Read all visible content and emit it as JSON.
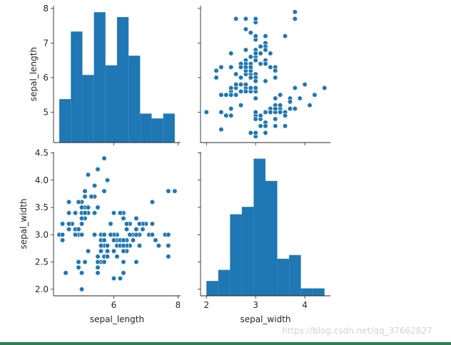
{
  "chart_data": {
    "type": "pairplot",
    "variables": [
      "sepal_length",
      "sepal_width"
    ],
    "grid": false,
    "color": "#1f77b4",
    "panels": [
      {
        "id": "hist_sepal_length",
        "row": 0,
        "col": 0,
        "type": "bar",
        "variable": "sepal_length",
        "bin_edges": [
          4.3,
          4.66,
          5.02,
          5.38,
          5.74,
          6.1,
          6.46,
          6.82,
          7.18,
          7.54,
          7.9
        ],
        "counts": [
          9,
          23,
          14,
          27,
          16,
          26,
          18,
          6,
          5,
          6
        ]
      },
      {
        "id": "scatter_length_vs_width",
        "row": 0,
        "col": 1,
        "type": "scatter",
        "x_var": "sepal_width",
        "y_var": "sepal_length"
      },
      {
        "id": "scatter_width_vs_length",
        "row": 1,
        "col": 0,
        "type": "scatter",
        "x_var": "sepal_length",
        "y_var": "sepal_width"
      },
      {
        "id": "hist_sepal_width",
        "row": 1,
        "col": 1,
        "type": "bar",
        "variable": "sepal_width",
        "bin_edges": [
          2.0,
          2.24,
          2.48,
          2.72,
          2.96,
          3.2,
          3.44,
          3.68,
          3.92,
          4.16,
          4.4
        ],
        "counts": [
          4,
          7,
          22,
          24,
          37,
          31,
          10,
          11,
          2,
          2
        ]
      }
    ],
    "points": [
      [
        5.1,
        3.5
      ],
      [
        4.9,
        3.0
      ],
      [
        4.7,
        3.2
      ],
      [
        4.6,
        3.1
      ],
      [
        5.0,
        3.6
      ],
      [
        5.4,
        3.9
      ],
      [
        4.6,
        3.4
      ],
      [
        5.0,
        3.4
      ],
      [
        4.4,
        2.9
      ],
      [
        4.9,
        3.1
      ],
      [
        5.4,
        3.7
      ],
      [
        4.8,
        3.4
      ],
      [
        4.8,
        3.0
      ],
      [
        4.3,
        3.0
      ],
      [
        5.8,
        4.0
      ],
      [
        5.7,
        4.4
      ],
      [
        5.4,
        3.9
      ],
      [
        5.1,
        3.5
      ],
      [
        5.7,
        3.8
      ],
      [
        5.1,
        3.8
      ],
      [
        5.4,
        3.4
      ],
      [
        5.1,
        3.7
      ],
      [
        4.6,
        3.6
      ],
      [
        5.1,
        3.3
      ],
      [
        4.8,
        3.4
      ],
      [
        5.0,
        3.0
      ],
      [
        5.0,
        3.4
      ],
      [
        5.2,
        3.5
      ],
      [
        5.2,
        3.4
      ],
      [
        4.7,
        3.2
      ],
      [
        4.8,
        3.1
      ],
      [
        5.4,
        3.4
      ],
      [
        5.2,
        4.1
      ],
      [
        5.5,
        4.2
      ],
      [
        4.9,
        3.1
      ],
      [
        5.0,
        3.2
      ],
      [
        5.5,
        3.5
      ],
      [
        4.9,
        3.6
      ],
      [
        4.4,
        3.0
      ],
      [
        5.1,
        3.4
      ],
      [
        5.0,
        3.5
      ],
      [
        4.5,
        2.3
      ],
      [
        4.4,
        3.2
      ],
      [
        5.0,
        3.5
      ],
      [
        5.1,
        3.8
      ],
      [
        4.8,
        3.0
      ],
      [
        5.1,
        3.8
      ],
      [
        4.6,
        3.2
      ],
      [
        5.3,
        3.7
      ],
      [
        5.0,
        3.3
      ],
      [
        7.0,
        3.2
      ],
      [
        6.4,
        3.2
      ],
      [
        6.9,
        3.1
      ],
      [
        5.5,
        2.3
      ],
      [
        6.5,
        2.8
      ],
      [
        5.7,
        2.8
      ],
      [
        6.3,
        3.3
      ],
      [
        4.9,
        2.4
      ],
      [
        6.6,
        2.9
      ],
      [
        5.2,
        2.7
      ],
      [
        5.0,
        2.0
      ],
      [
        5.9,
        3.0
      ],
      [
        6.0,
        2.2
      ],
      [
        6.1,
        2.9
      ],
      [
        5.6,
        2.9
      ],
      [
        6.7,
        3.1
      ],
      [
        5.6,
        3.0
      ],
      [
        5.8,
        2.7
      ],
      [
        6.2,
        2.2
      ],
      [
        5.6,
        2.5
      ],
      [
        5.9,
        3.2
      ],
      [
        6.1,
        2.8
      ],
      [
        6.3,
        2.5
      ],
      [
        6.1,
        2.8
      ],
      [
        6.4,
        2.9
      ],
      [
        6.6,
        3.0
      ],
      [
        6.8,
        2.8
      ],
      [
        6.7,
        3.0
      ],
      [
        6.0,
        2.9
      ],
      [
        5.7,
        2.6
      ],
      [
        5.5,
        2.4
      ],
      [
        5.5,
        2.4
      ],
      [
        5.8,
        2.7
      ],
      [
        6.0,
        2.7
      ],
      [
        5.4,
        3.0
      ],
      [
        6.0,
        3.4
      ],
      [
        6.7,
        3.1
      ],
      [
        6.3,
        2.3
      ],
      [
        5.6,
        3.0
      ],
      [
        5.5,
        2.5
      ],
      [
        5.5,
        2.6
      ],
      [
        6.1,
        3.0
      ],
      [
        5.8,
        2.6
      ],
      [
        5.0,
        2.3
      ],
      [
        5.6,
        2.7
      ],
      [
        5.7,
        3.0
      ],
      [
        5.7,
        2.9
      ],
      [
        6.2,
        2.9
      ],
      [
        5.1,
        2.5
      ],
      [
        5.7,
        2.8
      ],
      [
        6.3,
        3.3
      ],
      [
        5.8,
        2.7
      ],
      [
        7.1,
        3.0
      ],
      [
        6.3,
        2.9
      ],
      [
        6.5,
        3.0
      ],
      [
        7.6,
        3.0
      ],
      [
        4.9,
        2.5
      ],
      [
        7.3,
        2.9
      ],
      [
        6.7,
        2.5
      ],
      [
        7.2,
        3.6
      ],
      [
        6.5,
        3.2
      ],
      [
        6.4,
        2.7
      ],
      [
        6.8,
        3.0
      ],
      [
        5.7,
        2.5
      ],
      [
        5.8,
        2.8
      ],
      [
        6.4,
        3.2
      ],
      [
        6.5,
        3.0
      ],
      [
        7.7,
        3.8
      ],
      [
        7.7,
        2.6
      ],
      [
        6.0,
        2.2
      ],
      [
        6.9,
        3.2
      ],
      [
        5.6,
        2.8
      ],
      [
        7.7,
        2.8
      ],
      [
        6.3,
        2.7
      ],
      [
        6.7,
        3.3
      ],
      [
        7.2,
        3.2
      ],
      [
        6.2,
        2.8
      ],
      [
        6.1,
        3.0
      ],
      [
        6.4,
        2.8
      ],
      [
        7.2,
        3.0
      ],
      [
        7.4,
        2.8
      ],
      [
        7.9,
        3.8
      ],
      [
        6.4,
        2.8
      ],
      [
        6.3,
        2.8
      ],
      [
        6.1,
        2.6
      ],
      [
        7.7,
        3.0
      ],
      [
        6.3,
        3.4
      ],
      [
        6.4,
        3.1
      ],
      [
        6.0,
        3.0
      ],
      [
        6.9,
        3.1
      ],
      [
        6.7,
        3.1
      ],
      [
        6.9,
        3.1
      ],
      [
        5.8,
        2.7
      ],
      [
        6.8,
        3.2
      ],
      [
        6.7,
        3.3
      ],
      [
        6.7,
        3.0
      ],
      [
        6.3,
        2.5
      ],
      [
        6.5,
        3.0
      ],
      [
        6.2,
        3.4
      ],
      [
        5.9,
        3.0
      ]
    ],
    "axes": {
      "sepal_length": {
        "label": "sepal_length",
        "range": [
          4.12,
          8.08
        ],
        "ticks": [
          6,
          8
        ],
        "ticks_y": [
          5,
          6,
          7,
          8
        ]
      },
      "sepal_width": {
        "label": "sepal_width",
        "range": [
          1.88,
          4.52
        ],
        "ticks": [
          2,
          3,
          4
        ],
        "ticks_y": [
          2.0,
          2.5,
          3.0,
          3.5,
          4.0,
          4.5
        ]
      }
    },
    "tick_labels": {
      "sepal_length_x": [
        "6",
        "8"
      ],
      "sepal_width_x": [
        "2",
        "3",
        "4"
      ],
      "sepal_length_y": [
        "5",
        "6",
        "7",
        "8"
      ],
      "sepal_width_y": [
        "2.0",
        "2.5",
        "3.0",
        "3.5",
        "4.0",
        "4.5"
      ]
    },
    "xlabels": [
      "sepal_length",
      "sepal_width"
    ],
    "ylabels": [
      "sepal_length",
      "sepal_width"
    ]
  },
  "watermark": "https://blog.csdn.net/qq_37662827"
}
